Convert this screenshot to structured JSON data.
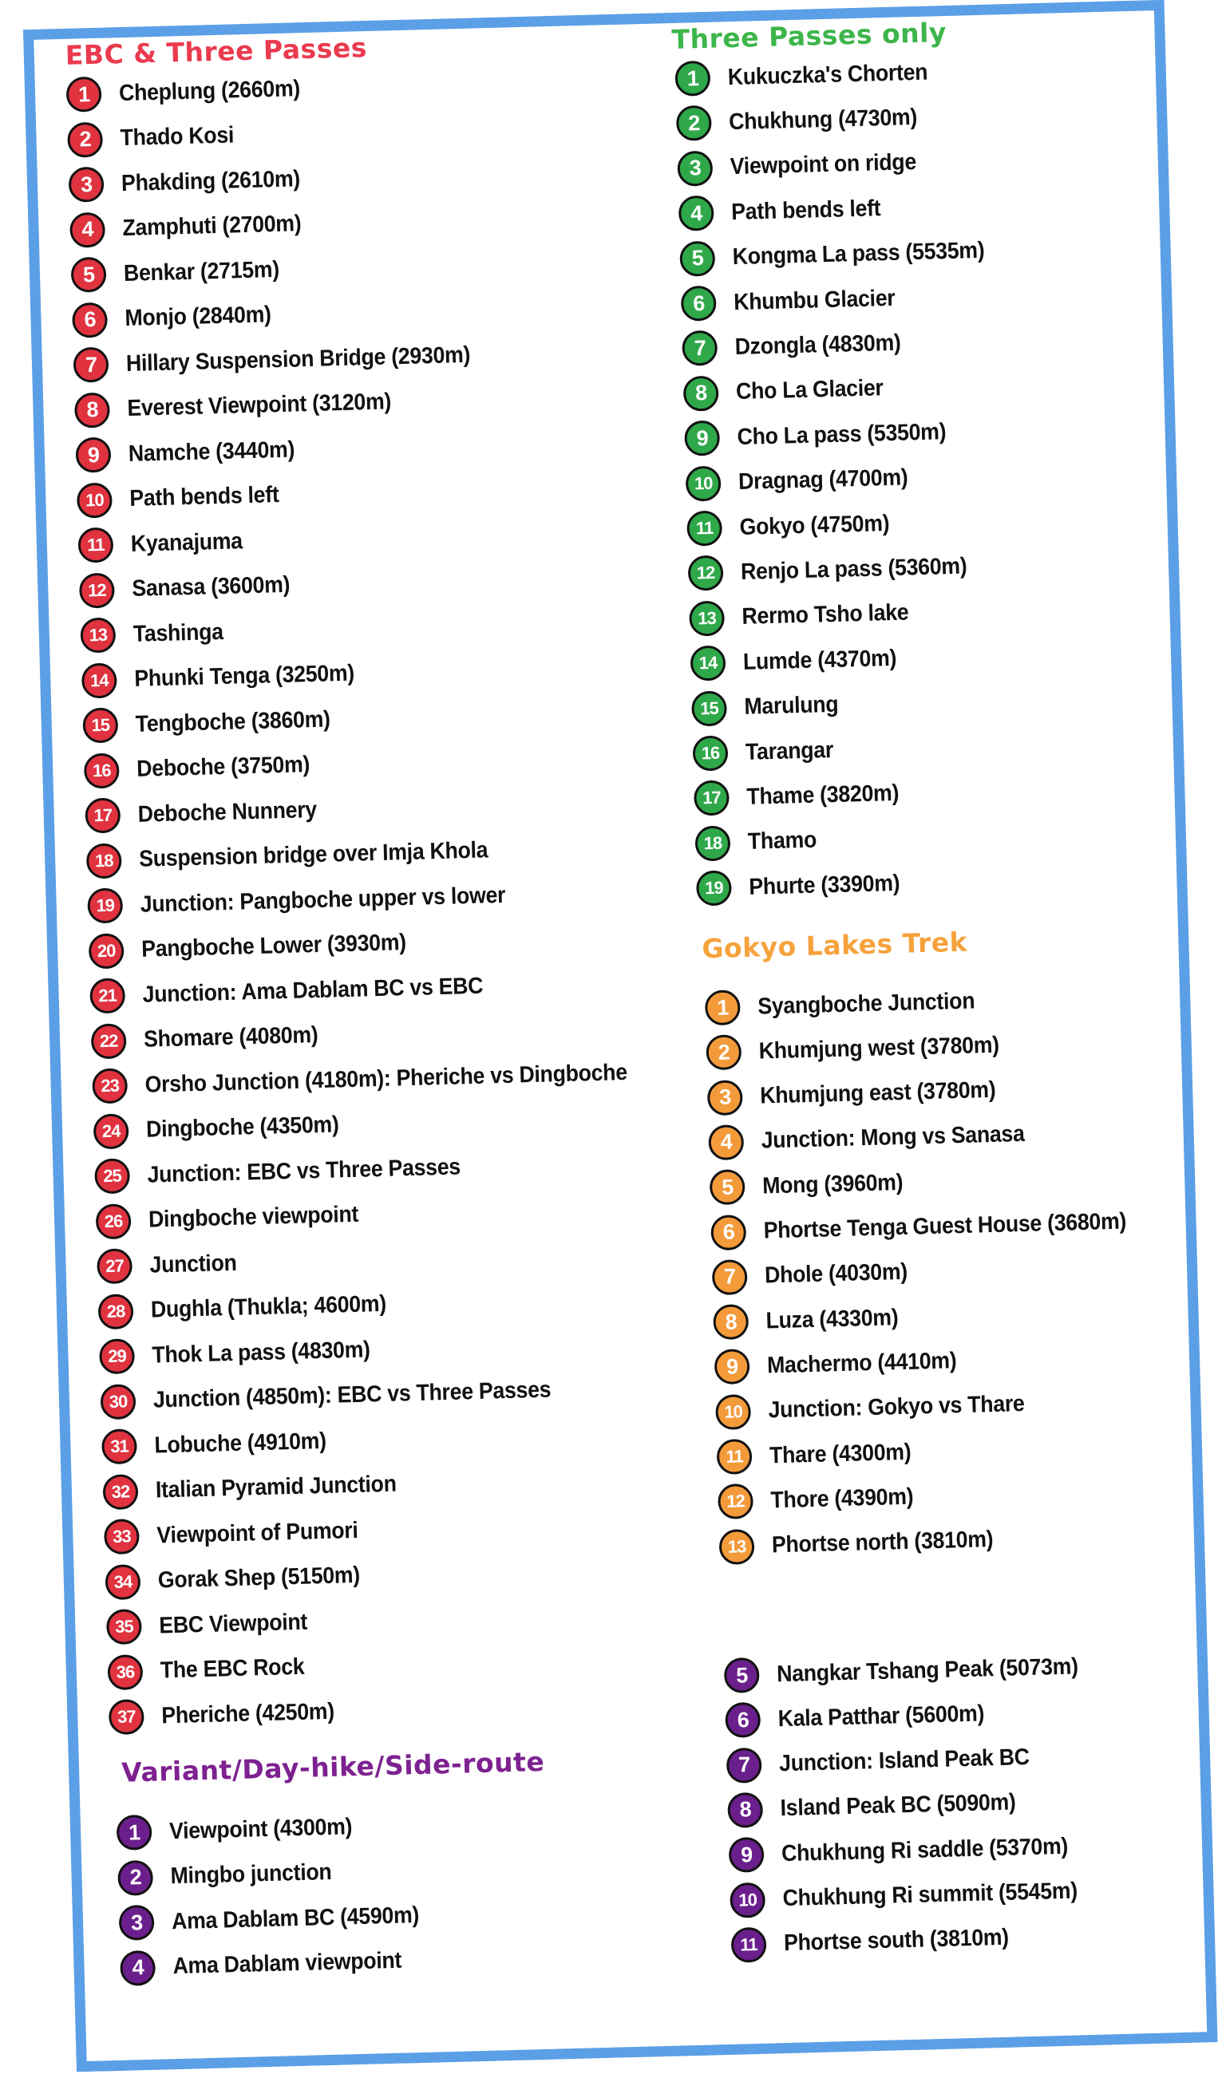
{
  "colors": {
    "border": "#5b9fe6",
    "ebc": "#e0333f",
    "three": "#2fa84a",
    "gokyo": "#f39a3a",
    "variant": "#6b1f8c",
    "ebc_title": "#ea3a4e",
    "three_title": "#3db54a",
    "gokyo_title": "#f6a23c",
    "variant_title": "#7d2190"
  },
  "sections": {
    "ebc": {
      "title": "EBC & Three Passes",
      "items": [
        "Cheplung (2660m)",
        "Thado Kosi",
        "Phakding (2610m)",
        "Zamphuti (2700m)",
        "Benkar (2715m)",
        "Monjo (2840m)",
        "Hillary Suspension Bridge (2930m)",
        "Everest Viewpoint (3120m)",
        "Namche (3440m)",
        "Path bends left",
        "Kyanajuma",
        "Sanasa (3600m)",
        "Tashinga",
        "Phunki Tenga (3250m)",
        "Tengboche (3860m)",
        "Deboche (3750m)",
        "Deboche Nunnery",
        "Suspension bridge over Imja Khola",
        "Junction: Pangboche upper vs lower",
        "Pangboche Lower (3930m)",
        "Junction: Ama Dablam BC vs EBC",
        "Shomare (4080m)",
        "Orsho Junction (4180m): Pheriche vs Dingboche",
        "Dingboche (4350m)",
        "Junction: EBC vs Three Passes",
        "Dingboche viewpoint",
        "Junction",
        "Dughla (Thukla; 4600m)",
        "Thok La pass (4830m)",
        "Junction (4850m): EBC vs Three Passes",
        "Lobuche (4910m)",
        "Italian Pyramid Junction",
        "Viewpoint of Pumori",
        "Gorak Shep (5150m)",
        "EBC Viewpoint",
        "The EBC Rock",
        "Pheriche (4250m)"
      ]
    },
    "three": {
      "title": "Three Passes only",
      "items": [
        "Kukuczka's Chorten",
        "Chukhung (4730m)",
        "Viewpoint on ridge",
        "Path bends left",
        "Kongma La pass (5535m)",
        "Khumbu Glacier",
        "Dzongla (4830m)",
        "Cho La Glacier",
        "Cho La pass (5350m)",
        "Dragnag (4700m)",
        "Gokyo (4750m)",
        "Renjo La pass (5360m)",
        "Rermo Tsho lake",
        "Lumde (4370m)",
        "Marulung",
        "Tarangar",
        "Thame (3820m)",
        "Thamo",
        "Phurte (3390m)"
      ]
    },
    "gokyo": {
      "title": "Gokyo Lakes Trek",
      "items": [
        "Syangboche Junction",
        "Khumjung west (3780m)",
        "Khumjung east (3780m)",
        "Junction: Mong vs Sanasa",
        "Mong (3960m)",
        "Phortse Tenga Guest House (3680m)",
        "Dhole (4030m)",
        "Luza (4330m)",
        "Machermo (4410m)",
        "Junction: Gokyo vs Thare",
        "Thare (4300m)",
        "Thore (4390m)",
        "Phortse north (3810m)"
      ]
    },
    "variant": {
      "title": "Variant/Day-hike/Side-route",
      "items": [
        "Viewpoint (4300m)",
        "Mingbo junction",
        "Ama Dablam BC (4590m)",
        "Ama Dablam viewpoint",
        "Nangkar Tshang Peak (5073m)",
        "Kala Patthar (5600m)",
        "Junction: Island Peak BC",
        "Island Peak BC (5090m)",
        "Chukhung Ri saddle (5370m)",
        "Chukhung Ri summit (5545m)",
        "Phortse south (3810m)"
      ]
    }
  }
}
